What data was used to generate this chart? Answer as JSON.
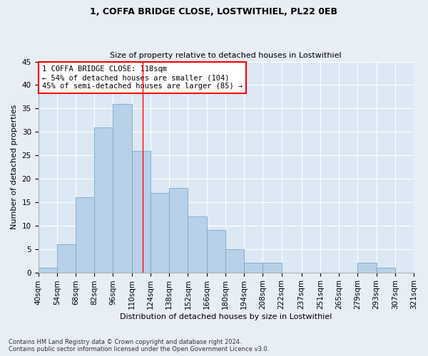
{
  "title1": "1, COFFA BRIDGE CLOSE, LOSTWITHIEL, PL22 0EB",
  "title2": "Size of property relative to detached houses in Lostwithiel",
  "xlabel": "Distribution of detached houses by size in Lostwithiel",
  "ylabel": "Number of detached properties",
  "footnote": "Contains HM Land Registry data © Crown copyright and database right 2024.\nContains public sector information licensed under the Open Government Licence v3.0.",
  "bin_labels": [
    "40sqm",
    "54sqm",
    "68sqm",
    "82sqm",
    "96sqm",
    "110sqm",
    "124sqm",
    "138sqm",
    "152sqm",
    "166sqm",
    "180sqm",
    "194sqm",
    "208sqm",
    "222sqm",
    "237sqm",
    "251sqm",
    "265sqm",
    "279sqm",
    "293sqm",
    "307sqm",
    "321sqm"
  ],
  "bar_values": [
    1,
    6,
    16,
    31,
    36,
    26,
    17,
    18,
    12,
    9,
    5,
    2,
    2,
    0,
    0,
    0,
    0,
    2,
    1,
    0
  ],
  "bar_color": "#b8d0e8",
  "bar_edge_color": "#7aaac8",
  "vline_x": 118,
  "vline_color": "red",
  "annotation_text": "1 COFFA BRIDGE CLOSE: 118sqm\n← 54% of detached houses are smaller (104)\n45% of semi-detached houses are larger (85) →",
  "annotation_box_color": "white",
  "annotation_box_edge": "red",
  "ylim": [
    0,
    45
  ],
  "yticks": [
    0,
    5,
    10,
    15,
    20,
    25,
    30,
    35,
    40,
    45
  ],
  "bg_color": "#e8eef5",
  "plot_bg_color": "#dce8f4",
  "grid_color": "#ffffff",
  "title1_fontsize": 9,
  "title2_fontsize": 8,
  "xlabel_fontsize": 8,
  "ylabel_fontsize": 8,
  "tick_fontsize": 7.5,
  "annot_fontsize": 7.5,
  "footnote_fontsize": 6
}
